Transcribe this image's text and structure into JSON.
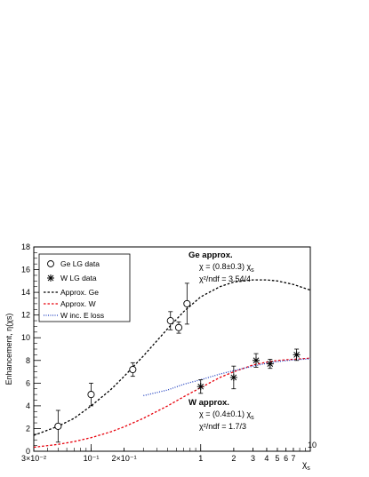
{
  "chart_data": {
    "type": "scatter",
    "xscale": "log",
    "xlim": [
      0.03,
      10
    ],
    "ylim": [
      0,
      18
    ],
    "xlabel": "χs",
    "ylabel": "Enhancement, η(χs)",
    "x_tick_labels": [
      {
        "x": 0.03,
        "label": "3×10⁻²"
      },
      {
        "x": 0.1,
        "label": "10⁻¹"
      },
      {
        "x": 0.2,
        "label": "2×10⁻¹"
      },
      {
        "x": 1,
        "label": "1"
      },
      {
        "x": 2,
        "label": "2"
      },
      {
        "x": 3,
        "label": "3"
      },
      {
        "x": 4,
        "label": "4"
      },
      {
        "x": 5,
        "label": "5"
      },
      {
        "x": 6,
        "label": "6"
      },
      {
        "x": 7,
        "label": "7"
      },
      {
        "x": 10,
        "label": "10"
      }
    ],
    "y_ticks": [
      0,
      2,
      4,
      6,
      8,
      10,
      12,
      14,
      16,
      18
    ],
    "legend": [
      {
        "label": "Ge LG data",
        "symbol": "open-circle"
      },
      {
        "label": "W LG data",
        "symbol": "star"
      },
      {
        "label": "Approx. Ge",
        "symbol": "dashed-black"
      },
      {
        "label": "Approx. W",
        "symbol": "dashed-red"
      },
      {
        "label": "W inc. E loss",
        "symbol": "dotted-blue"
      }
    ],
    "legend_position": "top-left",
    "annotations": {
      "ge": {
        "title": "Ge approx.",
        "line1": "χ = (0.8±0.3) χ",
        "sub1": "s",
        "line2": "χ²/ndf = 3.54/4"
      },
      "w": {
        "title": "W approx.",
        "line1": "χ = (0.4±0.1) χ",
        "sub1": "s",
        "line2": "χ²/ndf = 1.7/3"
      }
    },
    "series": [
      {
        "name": "Ge LG data",
        "kind": "points",
        "marker": "open-circle",
        "color": "#000000",
        "points": [
          {
            "x": 0.05,
            "y": 2.2,
            "err": 1.4
          },
          {
            "x": 0.1,
            "y": 5.0,
            "err": 1.0
          },
          {
            "x": 0.24,
            "y": 7.2,
            "err": 0.6
          },
          {
            "x": 0.53,
            "y": 11.5,
            "err": 0.8
          },
          {
            "x": 0.63,
            "y": 10.9,
            "err": 0.5
          },
          {
            "x": 0.75,
            "y": 13.0,
            "err": 1.8
          }
        ]
      },
      {
        "name": "W LG data",
        "kind": "points",
        "marker": "star",
        "color": "#000000",
        "points": [
          {
            "x": 1.0,
            "y": 5.7,
            "err": 0.6
          },
          {
            "x": 2.0,
            "y": 6.5,
            "err": 1.0
          },
          {
            "x": 3.2,
            "y": 8.0,
            "err": 0.6
          },
          {
            "x": 4.3,
            "y": 7.7,
            "err": 0.4
          },
          {
            "x": 7.5,
            "y": 8.5,
            "err": 0.5
          }
        ]
      },
      {
        "name": "Approx. Ge",
        "kind": "curve",
        "style": "dashed",
        "color": "#000000",
        "x": [
          0.03,
          0.05,
          0.07,
          0.1,
          0.15,
          0.2,
          0.3,
          0.5,
          0.7,
          1.0,
          1.5,
          2.0,
          3.0,
          4.0,
          5.0,
          7.0,
          10.0
        ],
        "y": [
          1.4,
          2.2,
          2.9,
          4.0,
          5.4,
          6.6,
          8.4,
          10.8,
          12.3,
          13.6,
          14.5,
          14.9,
          15.1,
          15.1,
          15.0,
          14.7,
          14.2
        ]
      },
      {
        "name": "Approx. W",
        "kind": "curve",
        "style": "dashed",
        "color": "#e8000b",
        "x": [
          0.03,
          0.05,
          0.07,
          0.1,
          0.15,
          0.2,
          0.3,
          0.5,
          0.7,
          1.0,
          1.5,
          2.0,
          3.0,
          4.0,
          5.0,
          7.0,
          10.0
        ],
        "y": [
          0.35,
          0.6,
          0.85,
          1.2,
          1.7,
          2.15,
          2.9,
          4.0,
          4.8,
          5.6,
          6.5,
          7.0,
          7.6,
          7.85,
          8.0,
          8.1,
          8.2
        ]
      },
      {
        "name": "W inc. E loss",
        "kind": "curve",
        "style": "dotted",
        "color": "#1f3fbf",
        "x": [
          0.3,
          0.5,
          0.7,
          1.0,
          1.5,
          2.0,
          3.0,
          4.0,
          5.0,
          7.0,
          10.0
        ],
        "y": [
          4.9,
          5.4,
          5.9,
          6.3,
          6.8,
          7.1,
          7.5,
          7.75,
          7.9,
          8.05,
          8.15
        ]
      }
    ]
  }
}
